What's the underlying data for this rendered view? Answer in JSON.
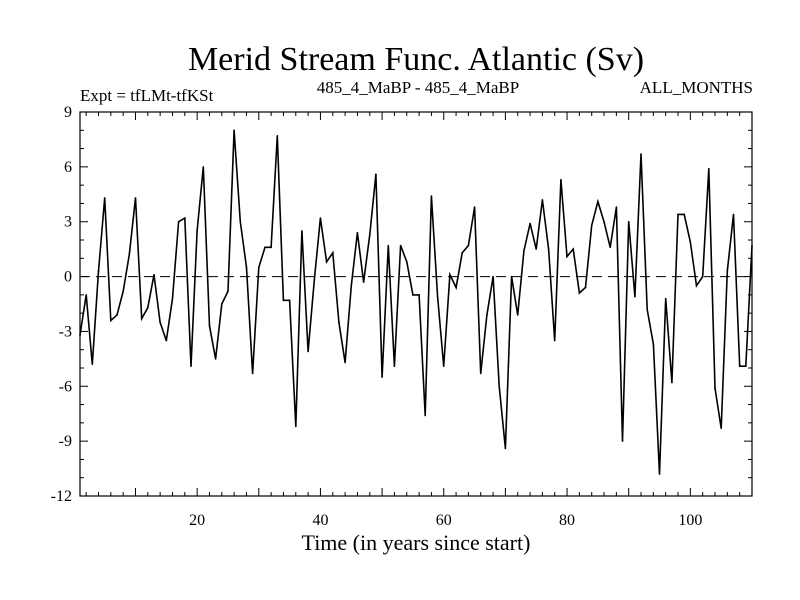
{
  "chart_data": {
    "type": "line",
    "title": "Merid Stream Func. Atlantic (Sv)",
    "subtitle_left": "Expt = tfLMt-tfKSt",
    "subtitle_center": "485_4_MaBP - 485_4_MaBP",
    "subtitle_right": "ALL_MONTHS",
    "xlabel": "Time (in years since start)",
    "ylabel": "",
    "xlim": [
      1,
      110
    ],
    "ylim": [
      -12,
      9
    ],
    "xticks": [
      20,
      40,
      60,
      80,
      100
    ],
    "yticks": [
      9,
      6,
      3,
      0,
      -3,
      -6,
      -9,
      -12
    ],
    "zero_line": true,
    "line_color": "#000000",
    "x_start": 1,
    "x_step": 1,
    "values": [
      -3.2,
      -1.0,
      -4.8,
      0.3,
      4.3,
      -2.4,
      -2.1,
      -0.8,
      1.2,
      4.3,
      -2.3,
      -1.7,
      0.1,
      -2.5,
      -3.5,
      -1.2,
      3.0,
      3.2,
      -4.9,
      2.5,
      6.0,
      -2.7,
      -4.5,
      -1.5,
      -0.8,
      8.0,
      3.0,
      0.5,
      -5.3,
      0.5,
      1.6,
      1.6,
      7.7,
      -1.3,
      -1.3,
      -8.2,
      2.5,
      -4.1,
      -0.2,
      3.2,
      0.8,
      1.3,
      -2.5,
      -4.7,
      -0.5,
      2.4,
      -0.3,
      2.3,
      5.6,
      -5.5,
      1.7,
      -4.9,
      1.7,
      0.8,
      -1.0,
      -1.0,
      -7.6,
      4.4,
      -1.1,
      -4.9,
      0.1,
      -0.6,
      1.3,
      1.7,
      3.8,
      -5.3,
      -2.1,
      0.0,
      -6.0,
      -9.4,
      0.0,
      -2.1,
      1.4,
      2.9,
      1.5,
      4.2,
      1.5,
      -3.5,
      5.3,
      1.1,
      1.5,
      -0.9,
      -0.6,
      2.8,
      4.1,
      3.0,
      1.6,
      3.8,
      -9.0,
      3.0,
      -1.1,
      6.7,
      -1.8,
      -3.7,
      -10.8,
      -1.2,
      -5.8,
      3.4,
      3.4,
      1.9,
      -0.5,
      0.0,
      5.9,
      -6.1,
      -8.3,
      0.3,
      3.4,
      -4.9,
      -4.9,
      1.7
    ]
  }
}
